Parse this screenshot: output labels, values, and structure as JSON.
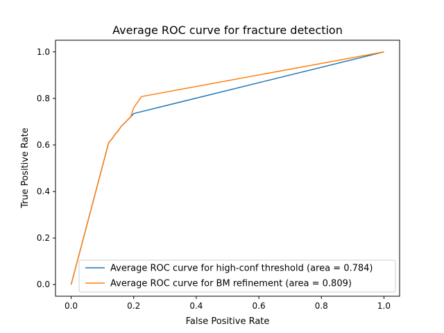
{
  "chart_data": {
    "type": "line",
    "title": "Average ROC curve for fracture detection",
    "xlabel": "False Positive Rate",
    "ylabel": "True Positive Rate",
    "xlim": [
      -0.05,
      1.05
    ],
    "ylim": [
      -0.05,
      1.05
    ],
    "xticks": [
      0.0,
      0.2,
      0.4,
      0.6,
      0.8,
      1.0
    ],
    "yticks": [
      0.0,
      0.2,
      0.4,
      0.6,
      0.8,
      1.0
    ],
    "xtick_labels": [
      "0.0",
      "0.2",
      "0.4",
      "0.6",
      "0.8",
      "1.0"
    ],
    "ytick_labels": [
      "0.0",
      "0.2",
      "0.4",
      "0.6",
      "0.8",
      "1.0"
    ],
    "grid": false,
    "legend_position": "lower-right",
    "series": [
      {
        "name": "Average ROC curve for high-conf threshold (area = 0.784)",
        "color": "#1f77b4",
        "x": [
          0.0,
          0.12,
          0.13,
          0.14,
          0.15,
          0.16,
          0.19,
          0.2,
          1.0
        ],
        "y": [
          0.0,
          0.61,
          0.625,
          0.645,
          0.66,
          0.68,
          0.72,
          0.735,
          1.0
        ]
      },
      {
        "name": "Average ROC curve for BM refinement (area = 0.809)",
        "color": "#ff7f0e",
        "x": [
          0.0,
          0.12,
          0.13,
          0.14,
          0.15,
          0.16,
          0.19,
          0.195,
          0.2,
          0.225,
          1.0
        ],
        "y": [
          0.0,
          0.61,
          0.625,
          0.645,
          0.66,
          0.68,
          0.72,
          0.74,
          0.76,
          0.808,
          1.0
        ]
      }
    ]
  }
}
